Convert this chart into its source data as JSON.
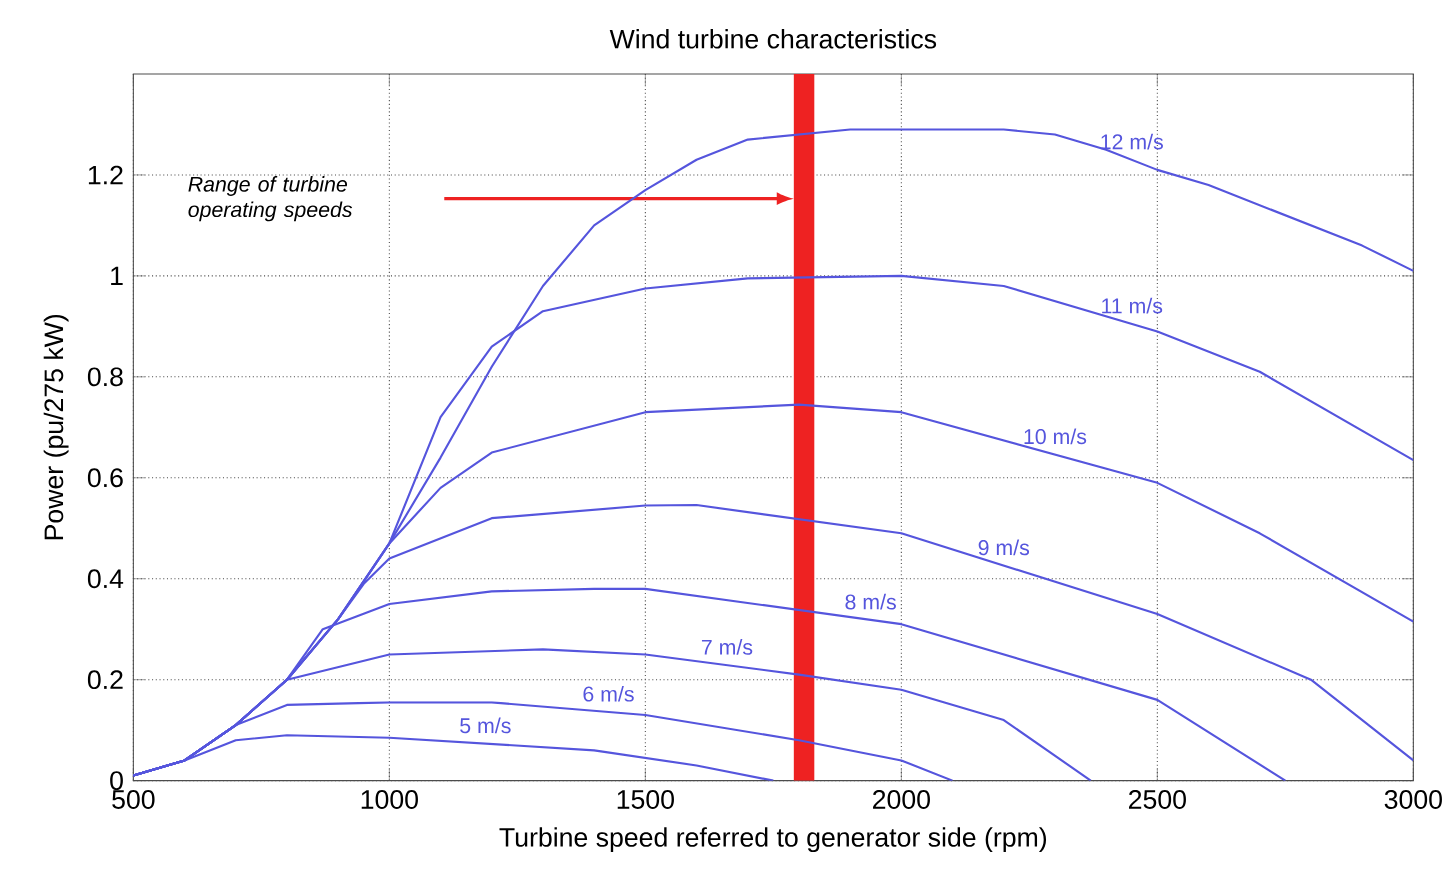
{
  "chart_data": {
    "type": "line",
    "title": "Wind turbine characteristics",
    "xlabel": "Turbine speed referred to generator side (rpm)",
    "ylabel": "Power (pu/275 kW)",
    "xlim": [
      500,
      3000
    ],
    "xticks": [
      500,
      1000,
      1500,
      2000,
      2500,
      3000
    ],
    "ylim": [
      0,
      1.4
    ],
    "yticks": [
      0,
      0.2,
      0.4,
      0.6,
      0.8,
      1,
      1.2
    ],
    "grid": true,
    "marker": "none",
    "line_style": "solid",
    "series": [
      {
        "name": "12 m/s",
        "color": "#5555dd",
        "x": [
          500,
          600,
          700,
          800,
          900,
          1000,
          1100,
          1200,
          1300,
          1400,
          1500,
          1600,
          1700,
          1800,
          1900,
          2000,
          2100,
          2200,
          2300,
          2400,
          2500,
          2600,
          2700,
          2800,
          2900,
          3000
        ],
        "values": [
          0.01,
          0.04,
          0.11,
          0.2,
          0.32,
          0.47,
          0.64,
          0.82,
          0.98,
          1.1,
          1.17,
          1.23,
          1.27,
          1.28,
          1.29,
          1.29,
          1.29,
          1.29,
          1.28,
          1.25,
          1.21,
          1.18,
          1.14,
          1.1,
          1.06,
          1.01
        ]
      },
      {
        "name": "11 m/s",
        "color": "#5555dd",
        "x": [
          500,
          600,
          700,
          800,
          900,
          1000,
          1100,
          1200,
          1300,
          1500,
          1700,
          2000,
          2200,
          2500,
          2700,
          3000
        ],
        "values": [
          0.01,
          0.04,
          0.11,
          0.2,
          0.32,
          0.47,
          0.72,
          0.86,
          0.93,
          0.975,
          0.995,
          1.0,
          0.98,
          0.89,
          0.81,
          0.635
        ]
      },
      {
        "name": "10 m/s",
        "color": "#5555dd",
        "x": [
          500,
          600,
          700,
          800,
          900,
          1000,
          1100,
          1200,
          1500,
          1800,
          2000,
          2500,
          2700,
          3000
        ],
        "values": [
          0.01,
          0.04,
          0.11,
          0.2,
          0.32,
          0.47,
          0.58,
          0.65,
          0.73,
          0.745,
          0.73,
          0.59,
          0.49,
          0.315
        ]
      },
      {
        "name": "9 m/s",
        "color": "#5555dd",
        "x": [
          500,
          600,
          700,
          800,
          900,
          950,
          1000,
          1200,
          1500,
          1600,
          2000,
          2500,
          2800,
          3000
        ],
        "values": [
          0.01,
          0.04,
          0.11,
          0.2,
          0.32,
          0.39,
          0.44,
          0.52,
          0.545,
          0.546,
          0.49,
          0.33,
          0.2,
          0.04
        ]
      },
      {
        "name": "8 m/s",
        "color": "#5555dd",
        "x": [
          500,
          600,
          700,
          800,
          870,
          1000,
          1200,
          1400,
          1500,
          2000,
          2500,
          2750
        ],
        "values": [
          0.01,
          0.04,
          0.11,
          0.2,
          0.3,
          0.35,
          0.375,
          0.38,
          0.38,
          0.31,
          0.16,
          0
        ]
      },
      {
        "name": "7 m/s",
        "color": "#5555dd",
        "x": [
          500,
          600,
          700,
          800,
          1000,
          1300,
          1500,
          1800,
          2000,
          2200,
          2370
        ],
        "values": [
          0.01,
          0.04,
          0.11,
          0.2,
          0.25,
          0.26,
          0.25,
          0.21,
          0.18,
          0.12,
          0
        ]
      },
      {
        "name": "6 m/s",
        "color": "#5555dd",
        "x": [
          500,
          600,
          700,
          800,
          1000,
          1200,
          1500,
          1800,
          2000,
          2100
        ],
        "values": [
          0.01,
          0.04,
          0.11,
          0.15,
          0.155,
          0.155,
          0.13,
          0.08,
          0.04,
          0
        ]
      },
      {
        "name": "5 m/s",
        "color": "#5555dd",
        "x": [
          500,
          600,
          700,
          800,
          1000,
          1400,
          1600,
          1750
        ],
        "values": [
          0.01,
          0.04,
          0.08,
          0.09,
          0.085,
          0.06,
          0.03,
          0
        ]
      }
    ],
    "bands": [
      {
        "axis": "x",
        "from": 1790,
        "to": 1830,
        "color": "#ee2222"
      }
    ],
    "annotations": [
      "Range of turbine operating speeds"
    ]
  }
}
